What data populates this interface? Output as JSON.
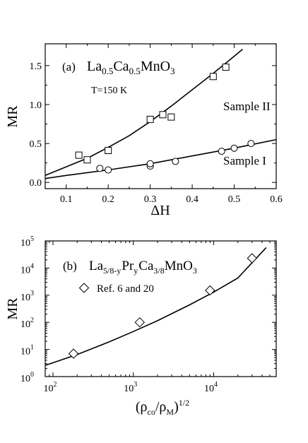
{
  "chart_data": [
    {
      "type": "scatter",
      "panel_label": "(a)",
      "compound": {
        "base": "La",
        "s1": "0.5",
        "mid": "Ca",
        "s2": "0.5",
        "tail": "MnO",
        "s3": "3"
      },
      "temperature": "T=150 K",
      "xlabel": "ΔH",
      "ylabel": "MR",
      "xlim": [
        0.05,
        0.6
      ],
      "ylim": [
        -0.08,
        1.78
      ],
      "xticks": [
        0.1,
        0.2,
        0.3,
        0.4,
        0.5,
        0.6
      ],
      "xtick_labels": [
        "0.1",
        "0.2",
        "0.3",
        "0.4",
        "0.5",
        "0.6"
      ],
      "yticks": [
        0.0,
        0.5,
        1.0,
        1.5
      ],
      "ytick_labels": [
        "0.0",
        "0.5",
        "1.0",
        "1.5"
      ],
      "grid": false,
      "series": [
        {
          "name": "Sample II",
          "marker": "square",
          "x": [
            0.13,
            0.15,
            0.2,
            0.3,
            0.33,
            0.35,
            0.45,
            0.48
          ],
          "y": [
            0.35,
            0.29,
            0.41,
            0.81,
            0.87,
            0.84,
            1.36,
            1.48
          ]
        },
        {
          "name": "Sample I",
          "marker": "circle",
          "x": [
            0.18,
            0.2,
            0.3,
            0.3,
            0.36,
            0.47,
            0.5,
            0.54
          ],
          "y": [
            0.18,
            0.16,
            0.21,
            0.24,
            0.27,
            0.4,
            0.44,
            0.5
          ]
        }
      ],
      "fit_lines": [
        {
          "x": [
            0.05,
            0.1,
            0.15,
            0.2,
            0.25,
            0.3,
            0.35,
            0.4,
            0.45,
            0.5,
            0.52
          ],
          "y": [
            0.09,
            0.2,
            0.31,
            0.45,
            0.6,
            0.78,
            0.98,
            1.19,
            1.4,
            1.62,
            1.71
          ]
        },
        {
          "x": [
            0.05,
            0.1,
            0.2,
            0.3,
            0.4,
            0.5,
            0.6
          ],
          "y": [
            0.05,
            0.09,
            0.16,
            0.24,
            0.34,
            0.44,
            0.55
          ]
        }
      ]
    },
    {
      "type": "scatter",
      "panel_label": "(b)",
      "compound": {
        "base": "La",
        "s1": "5/8-y",
        "mid": "Pr",
        "s2": "y",
        "tail": "Ca",
        "s3": "3/8",
        "end": "MnO",
        "s4": "3"
      },
      "xlabel": "(ρco/ρM)1/2",
      "xlabel_parts": {
        "open": "(ρ",
        "s1": "co",
        "slash": "/ρ",
        "s2": "M",
        "close": ")",
        "exp": "1/2"
      },
      "ylabel": "MR",
      "xscale": "log",
      "yscale": "log",
      "xlim": [
        80,
        60000
      ],
      "ylim": [
        1,
        100000
      ],
      "xticks": [
        100,
        1000,
        10000
      ],
      "xtick_labels": [
        {
          "b": "10",
          "e": "2"
        },
        {
          "b": "10",
          "e": "3"
        },
        {
          "b": "10",
          "e": "4"
        }
      ],
      "yticks": [
        1,
        10,
        100,
        1000,
        10000,
        100000
      ],
      "ytick_labels": [
        {
          "b": "10",
          "e": "0"
        },
        {
          "b": "10",
          "e": "1"
        },
        {
          "b": "10",
          "e": "2"
        },
        {
          "b": "10",
          "e": "3"
        },
        {
          "b": "10",
          "e": "4"
        },
        {
          "b": "10",
          "e": "5"
        }
      ],
      "grid": false,
      "legend_position": "top-left",
      "series": [
        {
          "name": "Ref. 6 and 20",
          "marker": "diamond",
          "x": [
            180,
            1200,
            9000,
            30000
          ],
          "y": [
            7,
            100,
            1500,
            23000
          ]
        }
      ],
      "fit_lines": [
        {
          "x": [
            80,
            200,
            500,
            1000,
            2000,
            5000,
            10000,
            20000,
            45000
          ],
          "y": [
            2.6,
            6.5,
            19,
            46,
            115,
            440,
            1300,
            4300,
            57000
          ]
        }
      ]
    }
  ]
}
